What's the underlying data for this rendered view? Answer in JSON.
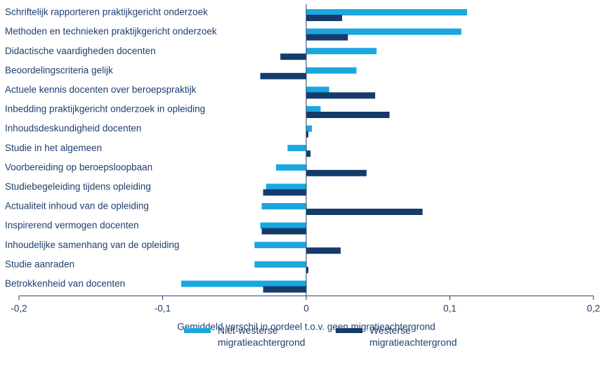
{
  "chart_data": {
    "type": "hbar",
    "x_label": "Gemiddeld verschil in oordeel t.o.v. geen migratieachtergrond",
    "categories": [
      "Schriftelijk rapporteren praktijkgericht onderzoek",
      "Methoden en technieken praktijkgericht onderzoek",
      "Didactische vaardigheden docenten",
      "Beoordelingscriteria gelijk",
      "Actuele kennis docenten over beroepspraktijk",
      "Inbedding praktijkgericht onderzoek in opleiding",
      "Inhoudsdeskundigheid docenten",
      "Studie in het algemeen",
      "Voorbereiding op beroepsloopbaan",
      "Studiebegeleiding tijdens opleiding",
      "Actualiteit inhoud van de opleiding",
      "Inspirerend vermogen docenten",
      "Inhoudelijke samenhang van de opleiding",
      "Studie aanraden",
      "Betrokkenheid van docenten"
    ],
    "series": [
      {
        "name": "Niet-westerse migratieachtergrond",
        "color": "#1aa7e0",
        "values": [
          0.112,
          0.108,
          0.049,
          0.035,
          0.016,
          0.01,
          0.004,
          -0.013,
          -0.021,
          -0.028,
          -0.031,
          -0.032,
          -0.036,
          -0.036,
          -0.087
        ]
      },
      {
        "name": "Westerse migratieachtergrond",
        "color": "#143b6a",
        "values": [
          0.025,
          0.029,
          -0.018,
          -0.032,
          0.048,
          0.058,
          0.0015,
          0.003,
          0.042,
          -0.03,
          0.081,
          -0.031,
          0.024,
          0.0015,
          -0.03
        ]
      }
    ],
    "xlim": [
      -0.2,
      0.2
    ],
    "xticks": [
      {
        "value": -0.2,
        "label": "-0,2"
      },
      {
        "value": -0.1,
        "label": "-0,1"
      },
      0,
      {
        "value": 0.1,
        "label": "0,1"
      },
      {
        "value": 0.2,
        "label": "0,2"
      }
    ],
    "legend": "bottom"
  }
}
